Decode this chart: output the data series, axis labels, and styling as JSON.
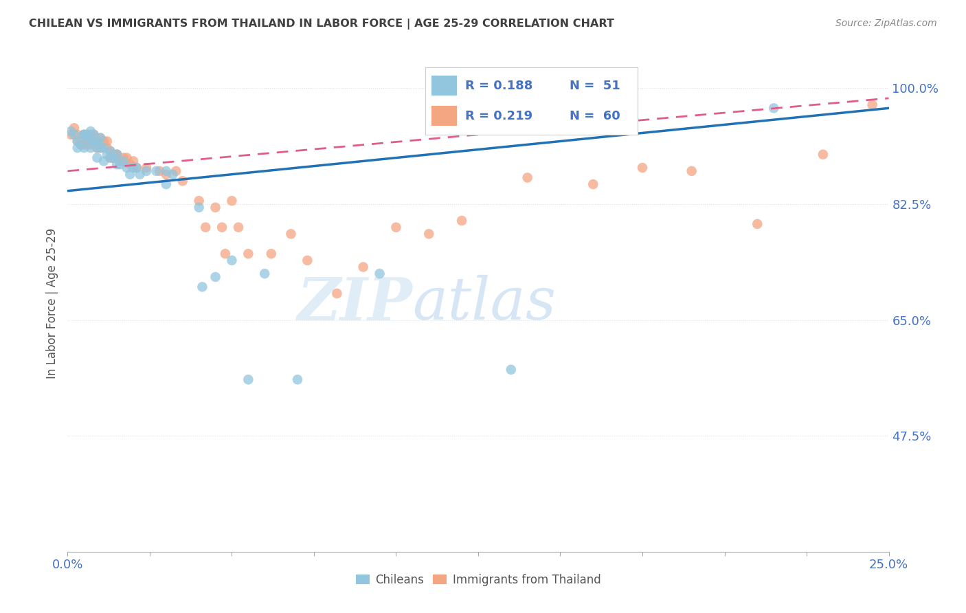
{
  "title": "CHILEAN VS IMMIGRANTS FROM THAILAND IN LABOR FORCE | AGE 25-29 CORRELATION CHART",
  "source": "Source: ZipAtlas.com",
  "ylabel_label": "In Labor Force | Age 25-29",
  "x_min": 0.0,
  "x_max": 0.25,
  "y_min": 0.3,
  "y_max": 1.05,
  "x_ticks": [
    0.0,
    0.025,
    0.05,
    0.075,
    0.1,
    0.125,
    0.15,
    0.175,
    0.2,
    0.225,
    0.25
  ],
  "x_tick_labels_show": [
    "0.0%",
    "25.0%"
  ],
  "y_ticks": [
    0.475,
    0.65,
    0.825,
    1.0
  ],
  "y_tick_labels": [
    "47.5%",
    "65.0%",
    "82.5%",
    "100.0%"
  ],
  "blue_color": "#92c5de",
  "pink_color": "#f4a582",
  "blue_scatter_color": "#6baed6",
  "pink_scatter_color": "#fc8d8d",
  "blue_line_color": "#2171b5",
  "pink_line_color": "#e05c8a",
  "legend_R_blue": "R = 0.188",
  "legend_N_blue": "N =  51",
  "legend_R_pink": "R = 0.219",
  "legend_N_pink": "N =  60",
  "blue_scatter_x": [
    0.001,
    0.002,
    0.003,
    0.003,
    0.004,
    0.005,
    0.005,
    0.005,
    0.006,
    0.006,
    0.006,
    0.007,
    0.007,
    0.007,
    0.008,
    0.008,
    0.009,
    0.009,
    0.009,
    0.01,
    0.01,
    0.011,
    0.011,
    0.012,
    0.013,
    0.013,
    0.014,
    0.015,
    0.015,
    0.016,
    0.017,
    0.018,
    0.019,
    0.02,
    0.021,
    0.022,
    0.024,
    0.027,
    0.03,
    0.03,
    0.032,
    0.04,
    0.041,
    0.045,
    0.05,
    0.055,
    0.06,
    0.07,
    0.095,
    0.135,
    0.215
  ],
  "blue_scatter_y": [
    0.935,
    0.93,
    0.92,
    0.91,
    0.915,
    0.93,
    0.93,
    0.91,
    0.925,
    0.93,
    0.93,
    0.935,
    0.92,
    0.91,
    0.93,
    0.92,
    0.92,
    0.91,
    0.895,
    0.925,
    0.91,
    0.91,
    0.89,
    0.9,
    0.895,
    0.905,
    0.895,
    0.885,
    0.9,
    0.885,
    0.89,
    0.88,
    0.87,
    0.88,
    0.88,
    0.87,
    0.875,
    0.875,
    0.875,
    0.855,
    0.87,
    0.82,
    0.7,
    0.715,
    0.74,
    0.56,
    0.72,
    0.56,
    0.72,
    0.575,
    0.97
  ],
  "pink_scatter_x": [
    0.001,
    0.002,
    0.003,
    0.003,
    0.004,
    0.005,
    0.005,
    0.006,
    0.006,
    0.007,
    0.007,
    0.008,
    0.008,
    0.009,
    0.009,
    0.01,
    0.01,
    0.011,
    0.012,
    0.012,
    0.013,
    0.013,
    0.014,
    0.014,
    0.015,
    0.015,
    0.016,
    0.017,
    0.018,
    0.019,
    0.02,
    0.021,
    0.024,
    0.028,
    0.03,
    0.033,
    0.035,
    0.04,
    0.042,
    0.045,
    0.047,
    0.048,
    0.05,
    0.052,
    0.055,
    0.062,
    0.068,
    0.073,
    0.082,
    0.09,
    0.1,
    0.11,
    0.12,
    0.14,
    0.16,
    0.175,
    0.19,
    0.21,
    0.23,
    0.245
  ],
  "pink_scatter_y": [
    0.93,
    0.94,
    0.93,
    0.92,
    0.915,
    0.93,
    0.915,
    0.925,
    0.915,
    0.93,
    0.915,
    0.93,
    0.925,
    0.92,
    0.91,
    0.925,
    0.91,
    0.92,
    0.91,
    0.92,
    0.905,
    0.895,
    0.9,
    0.895,
    0.9,
    0.9,
    0.89,
    0.895,
    0.895,
    0.885,
    0.89,
    0.88,
    0.88,
    0.875,
    0.87,
    0.875,
    0.86,
    0.83,
    0.79,
    0.82,
    0.79,
    0.75,
    0.83,
    0.79,
    0.75,
    0.75,
    0.78,
    0.74,
    0.69,
    0.73,
    0.79,
    0.78,
    0.8,
    0.865,
    0.855,
    0.88,
    0.875,
    0.795,
    0.9,
    0.975
  ],
  "blue_trend_x": [
    0.0,
    0.25
  ],
  "blue_trend_y": [
    0.845,
    0.97
  ],
  "pink_trend_x": [
    0.0,
    0.25
  ],
  "pink_trend_y": [
    0.875,
    0.985
  ],
  "watermark_zip": "ZIP",
  "watermark_atlas": "atlas",
  "background_color": "#ffffff",
  "grid_color": "#e0e0e0",
  "tick_color": "#4472c4",
  "title_color": "#404040",
  "source_color": "#888888"
}
